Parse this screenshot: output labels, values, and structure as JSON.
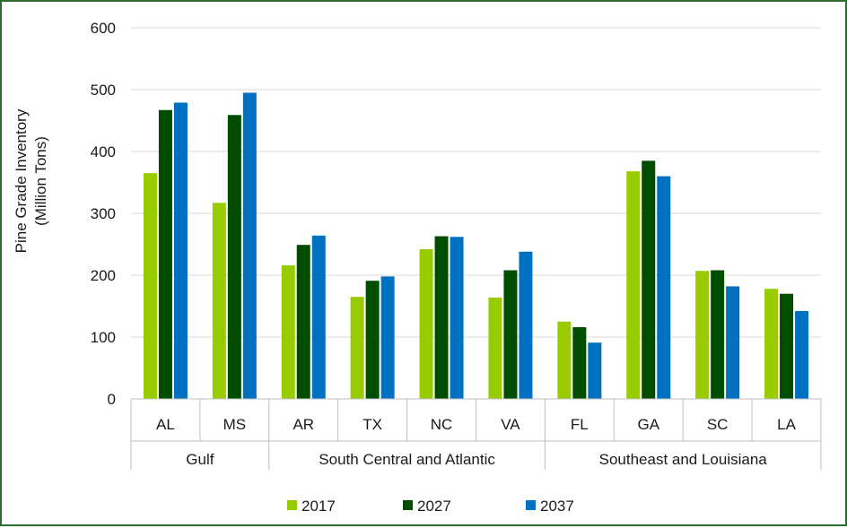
{
  "chart_data": {
    "type": "bar",
    "ylabel_line1": "Pine Grade Inventory",
    "ylabel_line2": "(Million Tons)",
    "ylim": [
      0,
      600
    ],
    "yticks": [
      0,
      100,
      200,
      300,
      400,
      500,
      600
    ],
    "grid": true,
    "legend_position": "bottom",
    "groups": [
      {
        "name": "Gulf",
        "categories": [
          "AL",
          "MS"
        ]
      },
      {
        "name": "South Central and Atlantic",
        "categories": [
          "AR",
          "TX",
          "NC",
          "VA"
        ]
      },
      {
        "name": "Southeast and Louisiana",
        "categories": [
          "FL",
          "GA",
          "SC",
          "LA"
        ]
      }
    ],
    "categories": [
      "AL",
      "MS",
      "AR",
      "TX",
      "NC",
      "VA",
      "FL",
      "GA",
      "SC",
      "LA"
    ],
    "series": [
      {
        "name": "2017",
        "color": "#99CC00",
        "values": [
          365,
          317,
          216,
          165,
          242,
          164,
          125,
          368,
          207,
          178
        ]
      },
      {
        "name": "2027",
        "color": "#004D00",
        "values": [
          467,
          459,
          249,
          191,
          263,
          208,
          116,
          385,
          208,
          170
        ]
      },
      {
        "name": "2037",
        "color": "#0070C0",
        "values": [
          479,
          495,
          264,
          198,
          262,
          238,
          91,
          360,
          182,
          142
        ]
      }
    ]
  }
}
